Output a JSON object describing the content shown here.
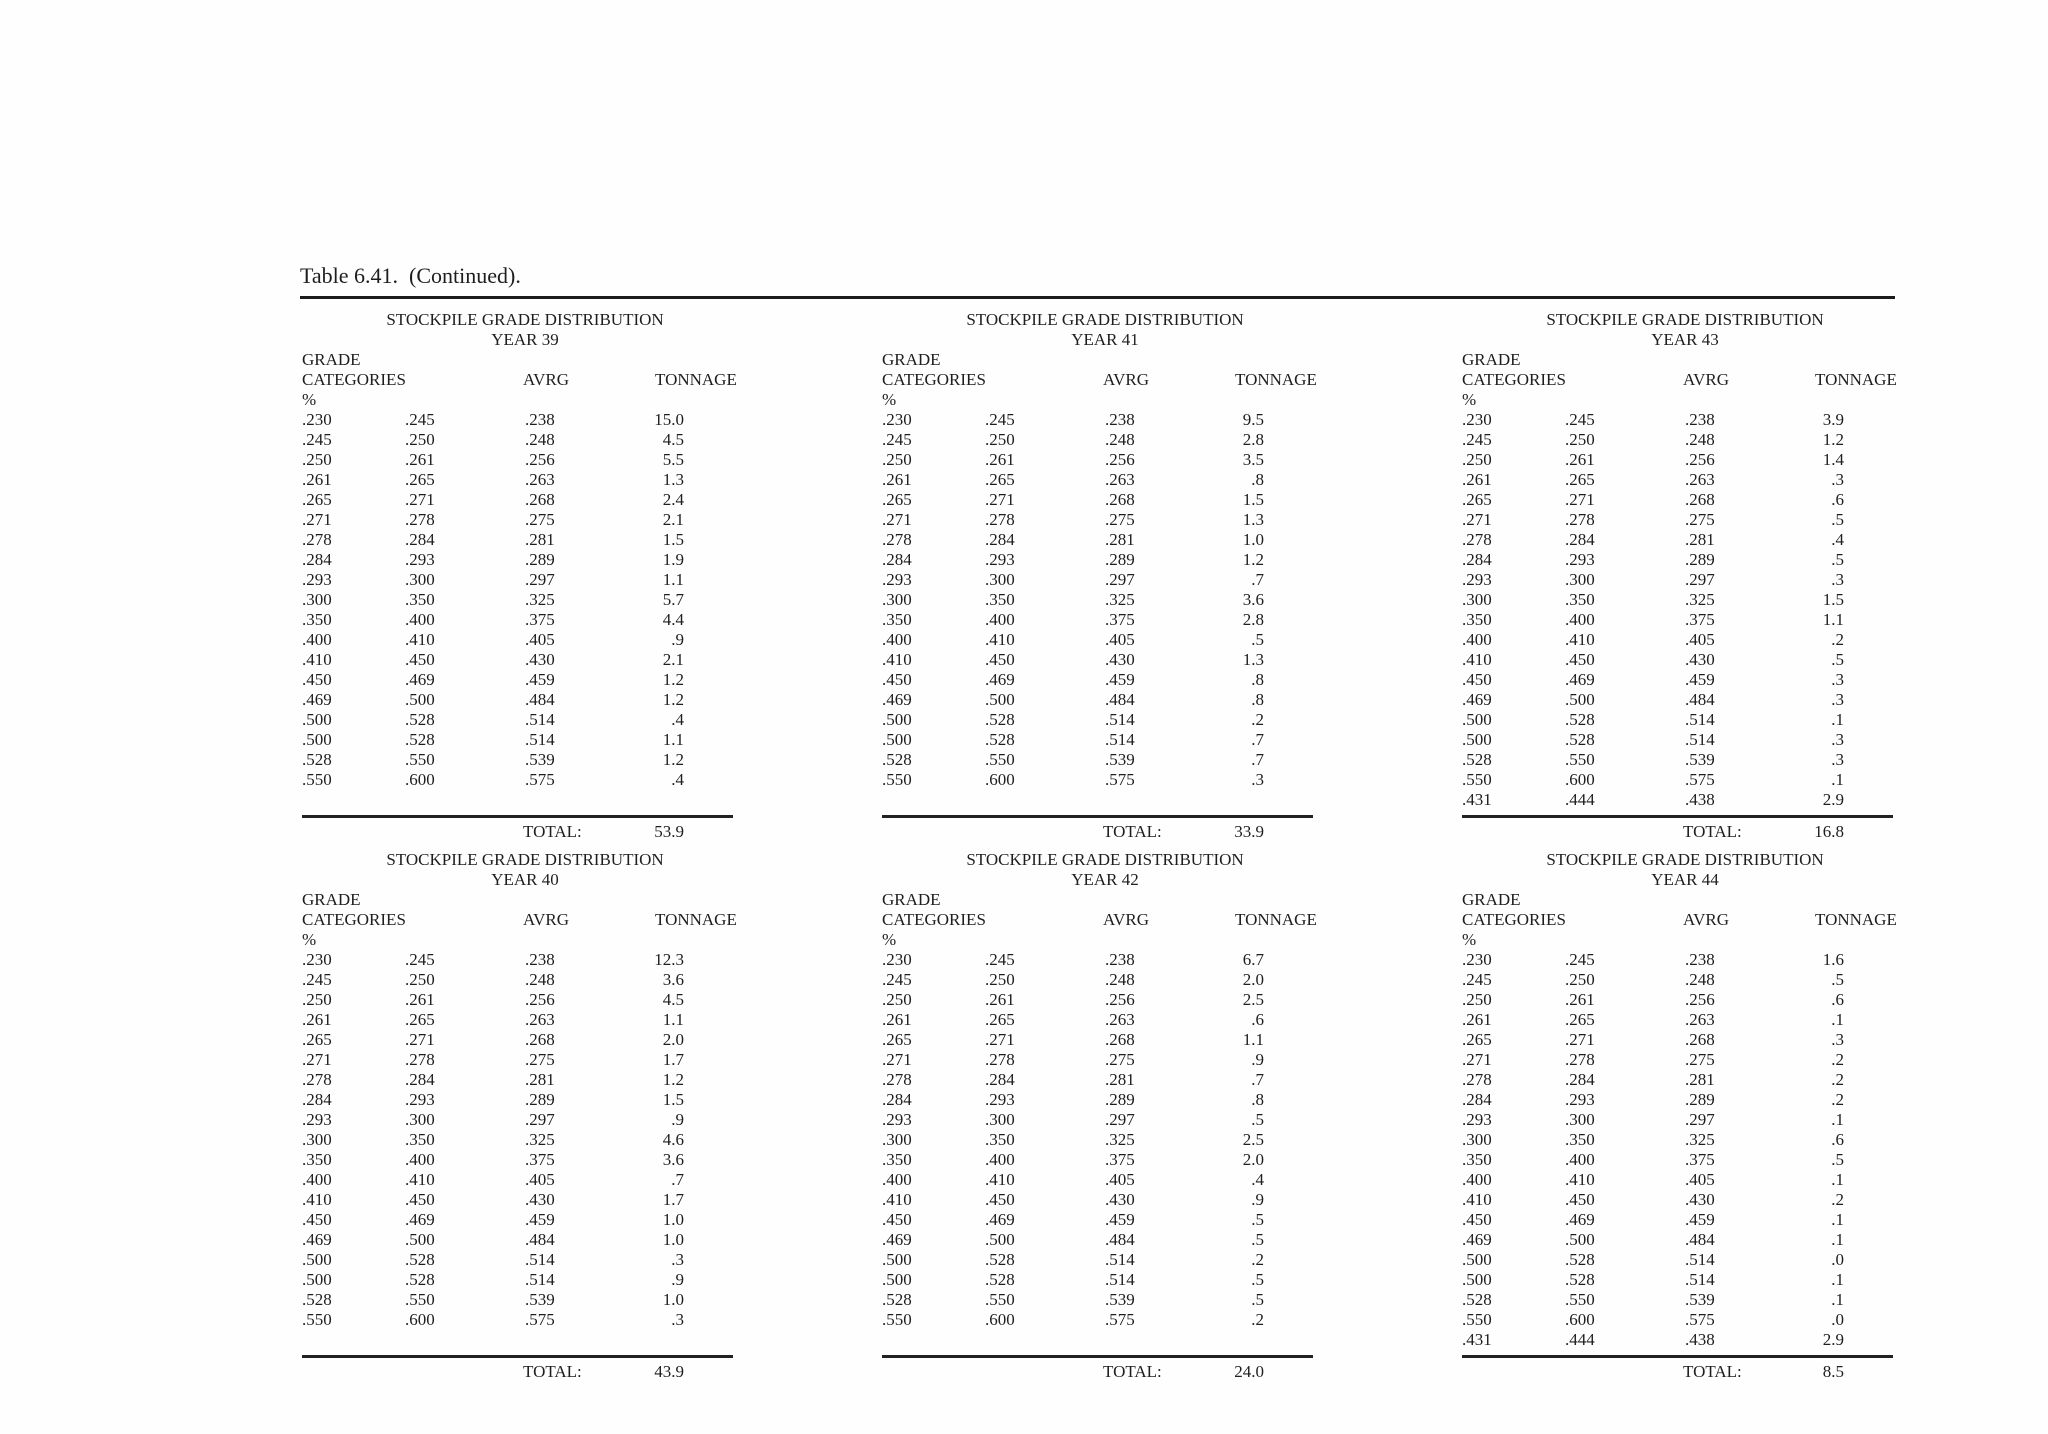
{
  "page": {
    "title": "Table 6.41.  (Continued)."
  },
  "table_header": "STOCKPILE GRADE DISTRIBUTION",
  "col_headers": {
    "line1": "GRADE",
    "line2": "CATEGORIES",
    "line3": "%",
    "avrg": "AVRG",
    "tonnage": "TONNAGE"
  },
  "total_label": "TOTAL:",
  "tables": [
    {
      "year": "YEAR 39",
      "total": "53.9",
      "rows": [
        [
          ".230",
          ".245",
          ".238",
          "15.0"
        ],
        [
          ".245",
          ".250",
          ".248",
          "4.5"
        ],
        [
          ".250",
          ".261",
          ".256",
          "5.5"
        ],
        [
          ".261",
          ".265",
          ".263",
          "1.3"
        ],
        [
          ".265",
          ".271",
          ".268",
          "2.4"
        ],
        [
          ".271",
          ".278",
          ".275",
          "2.1"
        ],
        [
          ".278",
          ".284",
          ".281",
          "1.5"
        ],
        [
          ".284",
          ".293",
          ".289",
          "1.9"
        ],
        [
          ".293",
          ".300",
          ".297",
          "1.1"
        ],
        [
          ".300",
          ".350",
          ".325",
          "5.7"
        ],
        [
          ".350",
          ".400",
          ".375",
          "4.4"
        ],
        [
          ".400",
          ".410",
          ".405",
          ".9"
        ],
        [
          ".410",
          ".450",
          ".430",
          "2.1"
        ],
        [
          ".450",
          ".469",
          ".459",
          "1.2"
        ],
        [
          ".469",
          ".500",
          ".484",
          "1.2"
        ],
        [
          ".500",
          ".528",
          ".514",
          ".4"
        ],
        [
          ".500",
          ".528",
          ".514",
          "1.1"
        ],
        [
          ".528",
          ".550",
          ".539",
          "1.2"
        ],
        [
          ".550",
          ".600",
          ".575",
          ".4"
        ]
      ]
    },
    {
      "year": "YEAR 41",
      "total": "33.9",
      "rows": [
        [
          ".230",
          ".245",
          ".238",
          "9.5"
        ],
        [
          ".245",
          ".250",
          ".248",
          "2.8"
        ],
        [
          ".250",
          ".261",
          ".256",
          "3.5"
        ],
        [
          ".261",
          ".265",
          ".263",
          ".8"
        ],
        [
          ".265",
          ".271",
          ".268",
          "1.5"
        ],
        [
          ".271",
          ".278",
          ".275",
          "1.3"
        ],
        [
          ".278",
          ".284",
          ".281",
          "1.0"
        ],
        [
          ".284",
          ".293",
          ".289",
          "1.2"
        ],
        [
          ".293",
          ".300",
          ".297",
          ".7"
        ],
        [
          ".300",
          ".350",
          ".325",
          "3.6"
        ],
        [
          ".350",
          ".400",
          ".375",
          "2.8"
        ],
        [
          ".400",
          ".410",
          ".405",
          ".5"
        ],
        [
          ".410",
          ".450",
          ".430",
          "1.3"
        ],
        [
          ".450",
          ".469",
          ".459",
          ".8"
        ],
        [
          ".469",
          ".500",
          ".484",
          ".8"
        ],
        [
          ".500",
          ".528",
          ".514",
          ".2"
        ],
        [
          ".500",
          ".528",
          ".514",
          ".7"
        ],
        [
          ".528",
          ".550",
          ".539",
          ".7"
        ],
        [
          ".550",
          ".600",
          ".575",
          ".3"
        ]
      ]
    },
    {
      "year": "YEAR 43",
      "total": "16.8",
      "rows": [
        [
          ".230",
          ".245",
          ".238",
          "3.9"
        ],
        [
          ".245",
          ".250",
          ".248",
          "1.2"
        ],
        [
          ".250",
          ".261",
          ".256",
          "1.4"
        ],
        [
          ".261",
          ".265",
          ".263",
          ".3"
        ],
        [
          ".265",
          ".271",
          ".268",
          ".6"
        ],
        [
          ".271",
          ".278",
          ".275",
          ".5"
        ],
        [
          ".278",
          ".284",
          ".281",
          ".4"
        ],
        [
          ".284",
          ".293",
          ".289",
          ".5"
        ],
        [
          ".293",
          ".300",
          ".297",
          ".3"
        ],
        [
          ".300",
          ".350",
          ".325",
          "1.5"
        ],
        [
          ".350",
          ".400",
          ".375",
          "1.1"
        ],
        [
          ".400",
          ".410",
          ".405",
          ".2"
        ],
        [
          ".410",
          ".450",
          ".430",
          ".5"
        ],
        [
          ".450",
          ".469",
          ".459",
          ".3"
        ],
        [
          ".469",
          ".500",
          ".484",
          ".3"
        ],
        [
          ".500",
          ".528",
          ".514",
          ".1"
        ],
        [
          ".500",
          ".528",
          ".514",
          ".3"
        ],
        [
          ".528",
          ".550",
          ".539",
          ".3"
        ],
        [
          ".550",
          ".600",
          ".575",
          ".1"
        ],
        [
          ".431",
          ".444",
          ".438",
          "2.9"
        ]
      ]
    },
    {
      "year": "YEAR 40",
      "total": "43.9",
      "rows": [
        [
          ".230",
          ".245",
          ".238",
          "12.3"
        ],
        [
          ".245",
          ".250",
          ".248",
          "3.6"
        ],
        [
          ".250",
          ".261",
          ".256",
          "4.5"
        ],
        [
          ".261",
          ".265",
          ".263",
          "1.1"
        ],
        [
          ".265",
          ".271",
          ".268",
          "2.0"
        ],
        [
          ".271",
          ".278",
          ".275",
          "1.7"
        ],
        [
          ".278",
          ".284",
          ".281",
          "1.2"
        ],
        [
          ".284",
          ".293",
          ".289",
          "1.5"
        ],
        [
          ".293",
          ".300",
          ".297",
          ".9"
        ],
        [
          ".300",
          ".350",
          ".325",
          "4.6"
        ],
        [
          ".350",
          ".400",
          ".375",
          "3.6"
        ],
        [
          ".400",
          ".410",
          ".405",
          ".7"
        ],
        [
          ".410",
          ".450",
          ".430",
          "1.7"
        ],
        [
          ".450",
          ".469",
          ".459",
          "1.0"
        ],
        [
          ".469",
          ".500",
          ".484",
          "1.0"
        ],
        [
          ".500",
          ".528",
          ".514",
          ".3"
        ],
        [
          ".500",
          ".528",
          ".514",
          ".9"
        ],
        [
          ".528",
          ".550",
          ".539",
          "1.0"
        ],
        [
          ".550",
          ".600",
          ".575",
          ".3"
        ]
      ]
    },
    {
      "year": "YEAR 42",
      "total": "24.0",
      "rows": [
        [
          ".230",
          ".245",
          ".238",
          "6.7"
        ],
        [
          ".245",
          ".250",
          ".248",
          "2.0"
        ],
        [
          ".250",
          ".261",
          ".256",
          "2.5"
        ],
        [
          ".261",
          ".265",
          ".263",
          ".6"
        ],
        [
          ".265",
          ".271",
          ".268",
          "1.1"
        ],
        [
          ".271",
          ".278",
          ".275",
          ".9"
        ],
        [
          ".278",
          ".284",
          ".281",
          ".7"
        ],
        [
          ".284",
          ".293",
          ".289",
          ".8"
        ],
        [
          ".293",
          ".300",
          ".297",
          ".5"
        ],
        [
          ".300",
          ".350",
          ".325",
          "2.5"
        ],
        [
          ".350",
          ".400",
          ".375",
          "2.0"
        ],
        [
          ".400",
          ".410",
          ".405",
          ".4"
        ],
        [
          ".410",
          ".450",
          ".430",
          ".9"
        ],
        [
          ".450",
          ".469",
          ".459",
          ".5"
        ],
        [
          ".469",
          ".500",
          ".484",
          ".5"
        ],
        [
          ".500",
          ".528",
          ".514",
          ".2"
        ],
        [
          ".500",
          ".528",
          ".514",
          ".5"
        ],
        [
          ".528",
          ".550",
          ".539",
          ".5"
        ],
        [
          ".550",
          ".600",
          ".575",
          ".2"
        ]
      ]
    },
    {
      "year": "YEAR 44",
      "total": "8.5",
      "rows": [
        [
          ".230",
          ".245",
          ".238",
          "1.6"
        ],
        [
          ".245",
          ".250",
          ".248",
          ".5"
        ],
        [
          ".250",
          ".261",
          ".256",
          ".6"
        ],
        [
          ".261",
          ".265",
          ".263",
          ".1"
        ],
        [
          ".265",
          ".271",
          ".268",
          ".3"
        ],
        [
          ".271",
          ".278",
          ".275",
          ".2"
        ],
        [
          ".278",
          ".284",
          ".281",
          ".2"
        ],
        [
          ".284",
          ".293",
          ".289",
          ".2"
        ],
        [
          ".293",
          ".300",
          ".297",
          ".1"
        ],
        [
          ".300",
          ".350",
          ".325",
          ".6"
        ],
        [
          ".350",
          ".400",
          ".375",
          ".5"
        ],
        [
          ".400",
          ".410",
          ".405",
          ".1"
        ],
        [
          ".410",
          ".450",
          ".430",
          ".2"
        ],
        [
          ".450",
          ".469",
          ".459",
          ".1"
        ],
        [
          ".469",
          ".500",
          ".484",
          ".1"
        ],
        [
          ".500",
          ".528",
          ".514",
          ".0"
        ],
        [
          ".500",
          ".528",
          ".514",
          ".1"
        ],
        [
          ".528",
          ".550",
          ".539",
          ".1"
        ],
        [
          ".550",
          ".600",
          ".575",
          ".0"
        ],
        [
          ".431",
          ".444",
          ".438",
          "2.9"
        ]
      ]
    }
  ]
}
